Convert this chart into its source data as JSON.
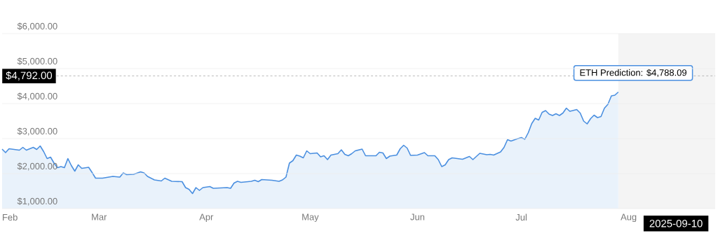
{
  "chart_data": {
    "type": "area",
    "x": [
      "2025-02-01",
      "2025-02-02",
      "2025-02-03",
      "2025-02-06",
      "2025-02-07",
      "2025-02-08",
      "2025-02-10",
      "2025-02-11",
      "2025-02-12",
      "2025-02-13",
      "2025-02-14",
      "2025-02-15",
      "2025-02-16",
      "2025-02-17",
      "2025-02-18",
      "2025-02-19",
      "2025-02-20",
      "2025-02-21",
      "2025-02-22",
      "2025-02-23",
      "2025-02-24",
      "2025-02-26",
      "2025-02-27",
      "2025-02-28",
      "2025-03-02",
      "2025-03-05",
      "2025-03-07",
      "2025-03-08",
      "2025-03-09",
      "2025-03-11",
      "2025-03-13",
      "2025-03-14",
      "2025-03-15",
      "2025-03-17",
      "2025-03-19",
      "2025-03-20",
      "2025-03-22",
      "2025-03-25",
      "2025-03-26",
      "2025-03-27",
      "2025-03-28",
      "2025-03-29",
      "2025-03-30",
      "2025-03-31",
      "2025-04-02",
      "2025-04-03",
      "2025-04-07",
      "2025-04-08",
      "2025-04-09",
      "2025-04-10",
      "2025-04-11",
      "2025-04-14",
      "2025-04-15",
      "2025-04-16",
      "2025-04-17",
      "2025-04-20",
      "2025-04-22",
      "2025-04-23",
      "2025-04-24",
      "2025-04-25",
      "2025-04-26",
      "2025-04-27",
      "2025-04-28",
      "2025-04-29",
      "2025-04-30",
      "2025-05-01",
      "2025-05-03",
      "2025-05-04",
      "2025-05-05",
      "2025-05-06",
      "2025-05-07",
      "2025-05-09",
      "2025-05-10",
      "2025-05-11",
      "2025-05-12",
      "2025-05-13",
      "2025-05-14",
      "2025-05-16",
      "2025-05-17",
      "2025-05-20",
      "2025-05-21",
      "2025-05-22",
      "2025-05-23",
      "2025-05-24",
      "2025-05-26",
      "2025-05-27",
      "2025-05-28",
      "2025-05-29",
      "2025-05-30",
      "2025-06-01",
      "2025-06-03",
      "2025-06-04",
      "2025-06-06",
      "2025-06-07",
      "2025-06-08",
      "2025-06-09",
      "2025-06-10",
      "2025-06-11",
      "2025-06-14",
      "2025-06-16",
      "2025-06-17",
      "2025-06-19",
      "2025-06-21",
      "2025-06-22",
      "2025-06-23",
      "2025-06-25",
      "2025-06-26",
      "2025-06-27",
      "2025-06-28",
      "2025-06-30",
      "2025-07-01",
      "2025-07-02",
      "2025-07-03",
      "2025-07-04",
      "2025-07-05",
      "2025-07-06",
      "2025-07-07",
      "2025-07-08",
      "2025-07-09",
      "2025-07-10",
      "2025-07-11",
      "2025-07-12",
      "2025-07-13",
      "2025-07-14",
      "2025-07-15",
      "2025-07-17",
      "2025-07-18",
      "2025-07-19",
      "2025-07-20",
      "2025-07-21",
      "2025-07-22",
      "2025-07-23",
      "2025-07-24",
      "2025-07-25",
      "2025-07-26",
      "2025-07-27",
      "2025-07-28",
      "2025-07-29"
    ],
    "series": [
      {
        "color": "#4a8fe0",
        "values": [
          2700,
          2600,
          2710,
          2670,
          2750,
          2670,
          2750,
          2690,
          2790,
          2630,
          2430,
          2470,
          2300,
          2170,
          2200,
          2170,
          2430,
          2230,
          2070,
          2250,
          2150,
          2180,
          2030,
          1870,
          1870,
          1920,
          1900,
          2020,
          1970,
          1980,
          2050,
          2020,
          1920,
          1820,
          1790,
          1870,
          1780,
          1770,
          1600,
          1550,
          1430,
          1600,
          1520,
          1600,
          1630,
          1580,
          1600,
          1580,
          1730,
          1780,
          1750,
          1780,
          1810,
          1770,
          1830,
          1810,
          1780,
          1820,
          1900,
          2300,
          2370,
          2530,
          2500,
          2450,
          2650,
          2570,
          2590,
          2480,
          2510,
          2400,
          2530,
          2570,
          2680,
          2550,
          2510,
          2570,
          2650,
          2700,
          2510,
          2510,
          2610,
          2590,
          2430,
          2500,
          2530,
          2710,
          2810,
          2730,
          2520,
          2530,
          2600,
          2510,
          2510,
          2400,
          2200,
          2250,
          2400,
          2450,
          2410,
          2490,
          2400,
          2580,
          2540,
          2550,
          2530,
          2620,
          2750,
          2970,
          2930,
          3000,
          3030,
          2980,
          3170,
          3430,
          3580,
          3530,
          3750,
          3800,
          3700,
          3660,
          3710,
          3660,
          3730,
          3870,
          3780,
          3830,
          3730,
          3500,
          3420,
          3570,
          3670,
          3600,
          3630,
          3870,
          3980,
          4220,
          4240,
          4330
        ]
      }
    ],
    "xlim": [
      "2025-02-01",
      "2025-08-26"
    ],
    "xticks": [
      {
        "value": "2025-02-01",
        "label": "Feb"
      },
      {
        "value": "2025-03-01",
        "label": "Mar"
      },
      {
        "value": "2025-04-01",
        "label": "Apr"
      },
      {
        "value": "2025-05-01",
        "label": "May"
      },
      {
        "value": "2025-06-01",
        "label": "Jun"
      },
      {
        "value": "2025-07-01",
        "label": "Jul"
      },
      {
        "value": "2025-08-01",
        "label": "Aug"
      }
    ],
    "ylim": [
      1000,
      6000
    ],
    "yticks": [
      {
        "value": 1000,
        "label": "$1,000.00"
      },
      {
        "value": 2000,
        "label": "$2,000.00"
      },
      {
        "value": 3000,
        "label": "$3,000.00"
      },
      {
        "value": 4000,
        "label": "$4,000.00"
      },
      {
        "value": 5000,
        "label": "$5,000.00"
      },
      {
        "value": 6000,
        "label": "$6,000.00"
      }
    ],
    "grid": "y",
    "ref_lines": [
      {
        "axis": "y",
        "value": 4792,
        "label": "$4,792.00",
        "line_style": "dashed",
        "color": "#aaaaaa"
      }
    ],
    "bands": [
      {
        "axis": "x",
        "from": "2025-07-29",
        "to": "2025-08-26",
        "color": "#f4f4f4"
      }
    ],
    "annotations": [
      "ETH Prediction: $4,788.09",
      "2025-09-10"
    ]
  }
}
